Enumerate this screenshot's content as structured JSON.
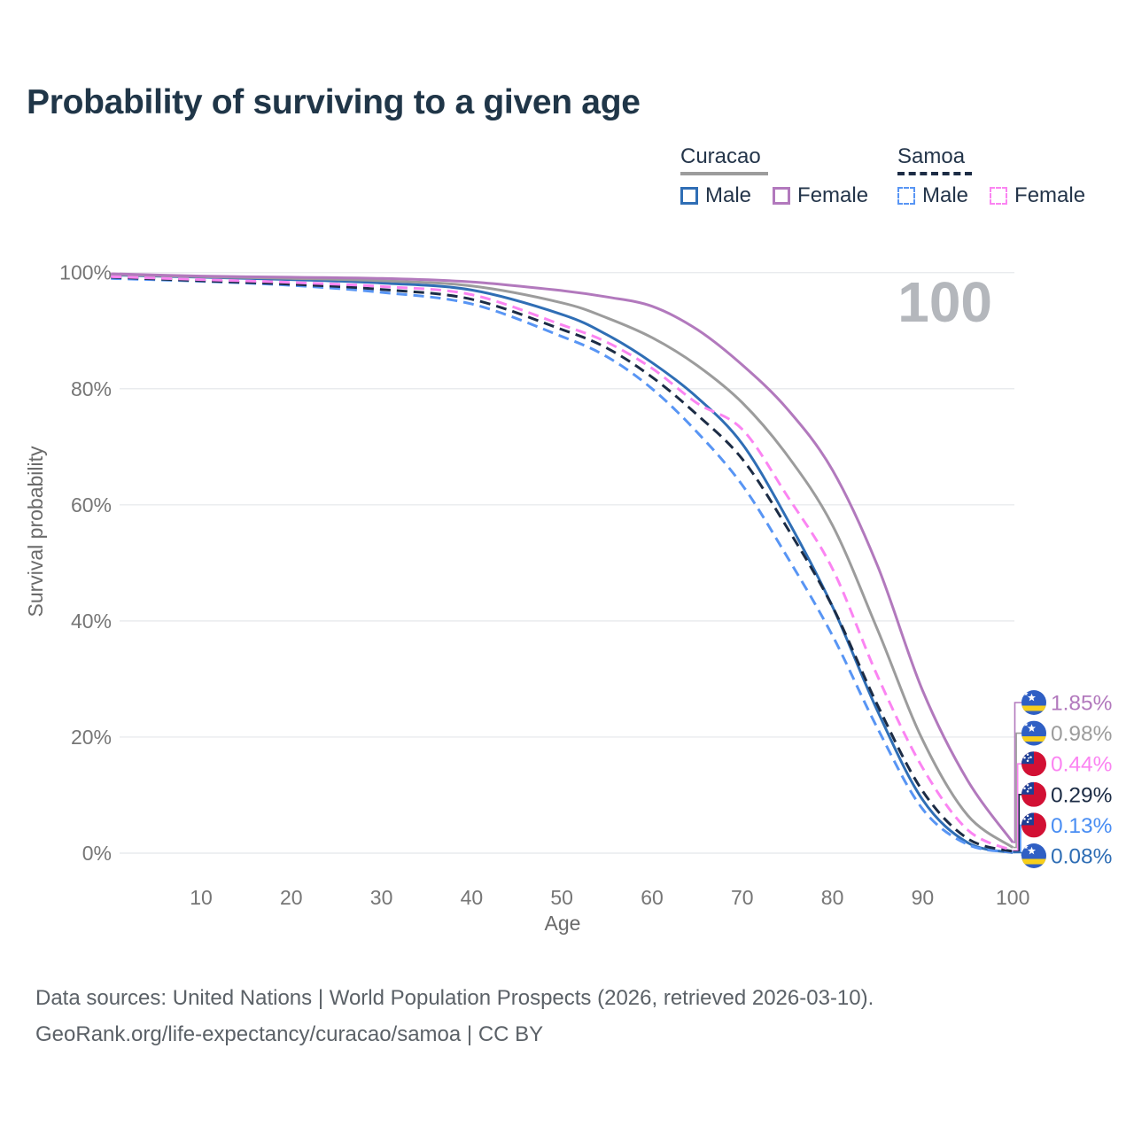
{
  "title": "Probability of surviving to a given age",
  "watermark": "100",
  "legend": {
    "groups": [
      {
        "label": "Curacao",
        "underline_style": "solid",
        "underline_color": "#9c9c9c",
        "items": [
          {
            "label": "Male",
            "color": "#2f6eb5",
            "dashed": false
          },
          {
            "label": "Female",
            "color": "#b279bd",
            "dashed": false
          }
        ]
      },
      {
        "label": "Samoa",
        "underline_style": "dashed",
        "underline_color": "#1c2c45",
        "items": [
          {
            "label": "Male",
            "color": "#5895f4",
            "dashed": true
          },
          {
            "label": "Female",
            "color": "#fb84f2",
            "dashed": true
          }
        ]
      }
    ]
  },
  "chart_data": {
    "type": "line",
    "title": "Probability of surviving to a given age",
    "xlabel": "Age",
    "ylabel": "Survival probability",
    "xlim": [
      0,
      100
    ],
    "ylim": [
      0,
      100
    ],
    "grid": "horizontal-only",
    "x_ticks": [
      "10",
      "20",
      "30",
      "40",
      "50",
      "60",
      "70",
      "80",
      "90",
      "100"
    ],
    "y_ticks": [
      "0%",
      "20%",
      "40%",
      "60%",
      "80%",
      "100%"
    ],
    "x": [
      0,
      10,
      20,
      30,
      40,
      50,
      55,
      60,
      65,
      70,
      75,
      80,
      85,
      90,
      95,
      100
    ],
    "series": [
      {
        "name": "Curacao Male",
        "color": "#2f6eb5",
        "dashed": false,
        "values": [
          99.6,
          99.2,
          98.8,
          98.2,
          97.0,
          92.8,
          89.3,
          84.5,
          78.5,
          70.5,
          57.5,
          42.5,
          24.5,
          9.2,
          1.8,
          0.08
        ]
      },
      {
        "name": "Curacao",
        "color": "#9c9c9c",
        "dashed": false,
        "values": [
          99.7,
          99.3,
          99.0,
          98.6,
          97.7,
          94.8,
          92.2,
          88.8,
          84.0,
          77.6,
          68.5,
          56.5,
          38.5,
          19.5,
          6.5,
          0.98
        ]
      },
      {
        "name": "Curacao Female",
        "color": "#b279bd",
        "dashed": false,
        "values": [
          99.8,
          99.4,
          99.2,
          99.0,
          98.4,
          96.9,
          95.8,
          94.2,
          90.2,
          84.1,
          76.5,
          66.0,
          49.5,
          28.0,
          12.5,
          1.85
        ]
      },
      {
        "name": "Samoa Male",
        "color": "#5895f4",
        "dashed": true,
        "values": [
          99.0,
          98.5,
          97.8,
          96.6,
          94.6,
          89.0,
          85.5,
          80.0,
          72.5,
          63.4,
          51.0,
          37.5,
          21.5,
          7.6,
          1.5,
          0.13
        ]
      },
      {
        "name": "Samoa",
        "color": "#1c2c45",
        "dashed": true,
        "values": [
          99.2,
          98.6,
          98.0,
          97.1,
          95.4,
          90.2,
          87.0,
          82.0,
          75.5,
          67.9,
          56.0,
          42.5,
          25.5,
          10.7,
          2.5,
          0.29
        ]
      },
      {
        "name": "Samoa Female",
        "color": "#fb84f2",
        "dashed": true,
        "values": [
          99.3,
          98.8,
          98.3,
          97.6,
          96.2,
          91.0,
          88.0,
          83.5,
          77.5,
          73.0,
          61.5,
          49.0,
          30.5,
          14.7,
          4.0,
          0.44
        ]
      }
    ],
    "end_labels": [
      {
        "value": "1.85%",
        "flag": "curacao",
        "color": "#b279bd",
        "series": 2
      },
      {
        "value": "0.98%",
        "flag": "curacao",
        "color": "#9c9c9c",
        "series": 1
      },
      {
        "value": "0.44%",
        "flag": "samoa",
        "color": "#fb84f2",
        "series": 5
      },
      {
        "value": "0.29%",
        "flag": "samoa",
        "color": "#1c2c45",
        "series": 4
      },
      {
        "value": "0.13%",
        "flag": "samoa",
        "color": "#4a8ef3",
        "series": 3
      },
      {
        "value": "0.08%",
        "flag": "curacao",
        "color": "#2f6eb5",
        "series": 0
      }
    ]
  },
  "flags": {
    "curacao": {
      "field": "#2f5fc4",
      "stripe": "#f7cf1c",
      "star": "#ffffff"
    },
    "samoa": {
      "field": "#d21034",
      "canton": "#1e3f96",
      "star": "#ffffff"
    }
  },
  "footer": {
    "line1": "Data sources: United Nations | World Population Prospects (2026, retrieved 2026-03-10).",
    "line2": "GeoRank.org/life-expectancy/curacao/samoa | CC BY"
  },
  "theme": {
    "background": "#ffffff",
    "title_color": "#203648",
    "legend_text_color": "#24354a",
    "tick_color": "#767676",
    "axis_title_color": "#6a6a6a",
    "grid_color": "#e9ebee",
    "watermark_color": "#b4b7bc",
    "footer_color": "#5b6167",
    "curacao_underline": "#9c9c9c",
    "samoa_underline": "#1c2c45"
  }
}
